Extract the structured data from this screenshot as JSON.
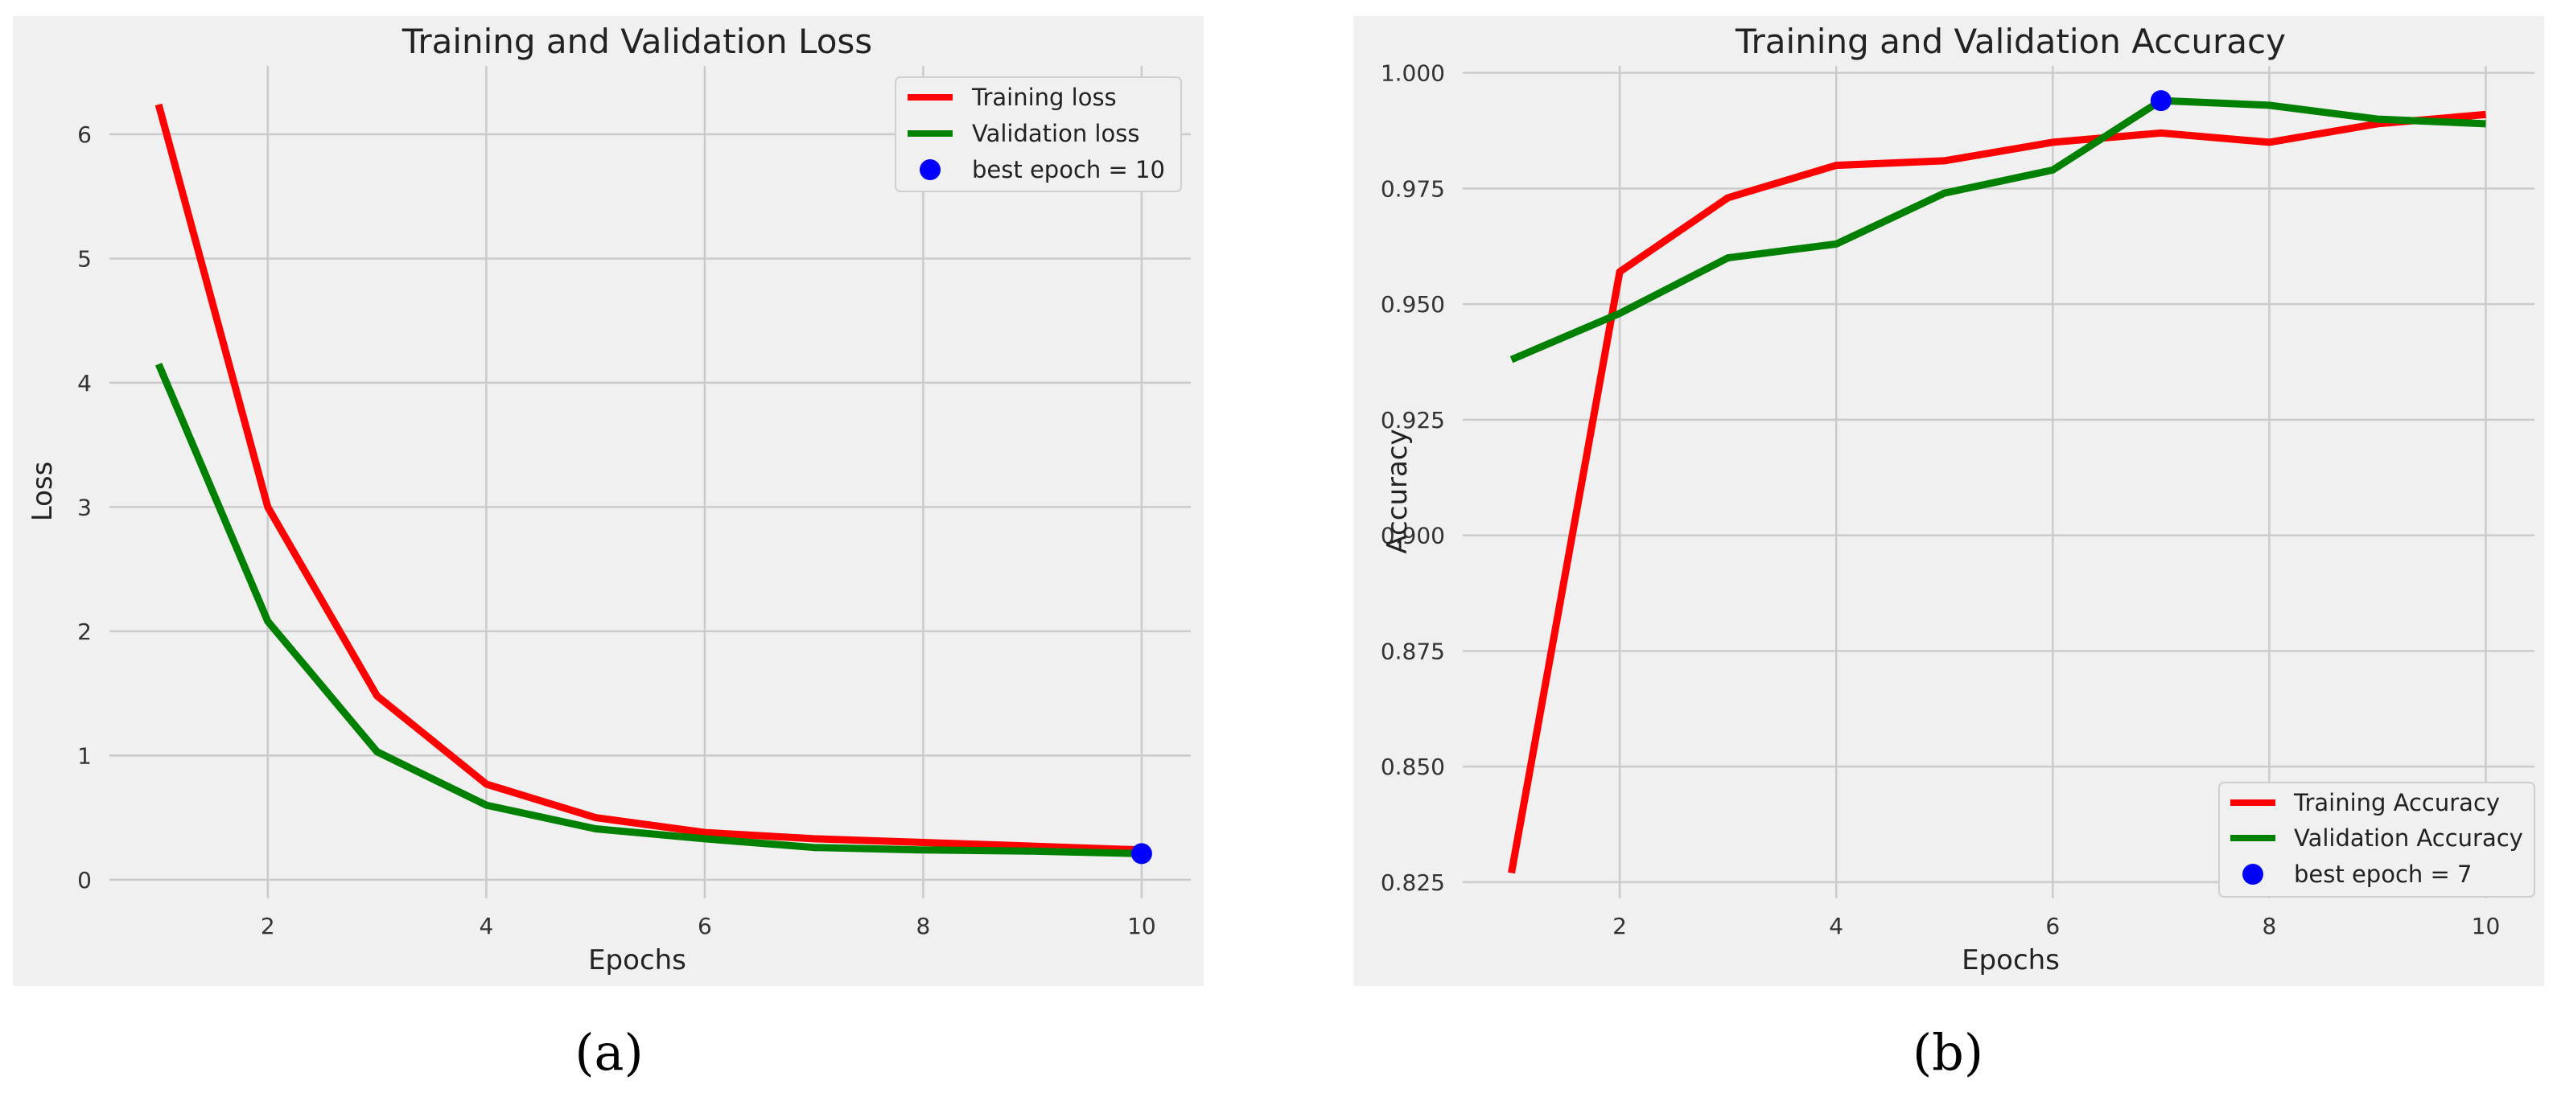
{
  "chart_data": [
    {
      "type": "line",
      "title": "Training and Validation Loss",
      "xlabel": "Epochs",
      "ylabel": "Loss",
      "xlim": [
        0.55,
        10.45
      ],
      "ylim": [
        -0.15,
        6.55
      ],
      "xticks": [
        2,
        4,
        6,
        8,
        10
      ],
      "yticks": [
        0,
        1,
        2,
        3,
        4,
        5,
        6
      ],
      "grid": true,
      "legend_position": "top-right",
      "colors": {
        "Training loss": "#ff0000",
        "Validation loss": "#008000",
        "best": "#0000ff",
        "background": "#f0f0f0",
        "grid": "#cbcbcb"
      },
      "x": [
        1,
        2,
        3,
        4,
        5,
        6,
        7,
        8,
        9,
        10
      ],
      "series": [
        {
          "name": "Training loss",
          "values": [
            6.24,
            3.0,
            1.48,
            0.77,
            0.5,
            0.38,
            0.33,
            0.3,
            0.27,
            0.24
          ]
        },
        {
          "name": "Validation loss",
          "values": [
            4.15,
            2.08,
            1.03,
            0.6,
            0.41,
            0.33,
            0.26,
            0.24,
            0.23,
            0.21
          ]
        }
      ],
      "best_point": {
        "label": "best epoch = 10",
        "x": 10,
        "y": 0.21
      },
      "panel_label": "(a)"
    },
    {
      "type": "line",
      "title": "Training and Validation Accuracy",
      "xlabel": "Epochs",
      "ylabel": "Accuracy",
      "xlim": [
        0.55,
        10.45
      ],
      "ylim": [
        0.8215,
        1.0015
      ],
      "xticks": [
        2,
        4,
        6,
        8,
        10
      ],
      "yticks": [
        0.825,
        0.85,
        0.875,
        0.9,
        0.925,
        0.95,
        0.975,
        1.0
      ],
      "ytick_labels": [
        "0.825",
        "0.850",
        "0.875",
        "0.900",
        "0.925",
        "0.950",
        "0.975",
        "1.000"
      ],
      "grid": true,
      "legend_position": "bottom-right",
      "colors": {
        "Training Accuracy": "#ff0000",
        "Validation Accuracy": "#008000",
        "best": "#0000ff",
        "background": "#f0f0f0",
        "grid": "#cbcbcb"
      },
      "x": [
        1,
        2,
        3,
        4,
        5,
        6,
        7,
        8,
        9,
        10
      ],
      "series": [
        {
          "name": "Training Accuracy",
          "values": [
            0.827,
            0.957,
            0.973,
            0.98,
            0.981,
            0.985,
            0.987,
            0.985,
            0.989,
            0.991
          ]
        },
        {
          "name": "Validation Accuracy",
          "values": [
            0.938,
            0.948,
            0.96,
            0.963,
            0.974,
            0.979,
            0.994,
            0.993,
            0.99,
            0.989
          ]
        }
      ],
      "best_point": {
        "label": "best epoch = 7",
        "x": 7,
        "y": 0.994
      },
      "panel_label": "(b)"
    }
  ]
}
